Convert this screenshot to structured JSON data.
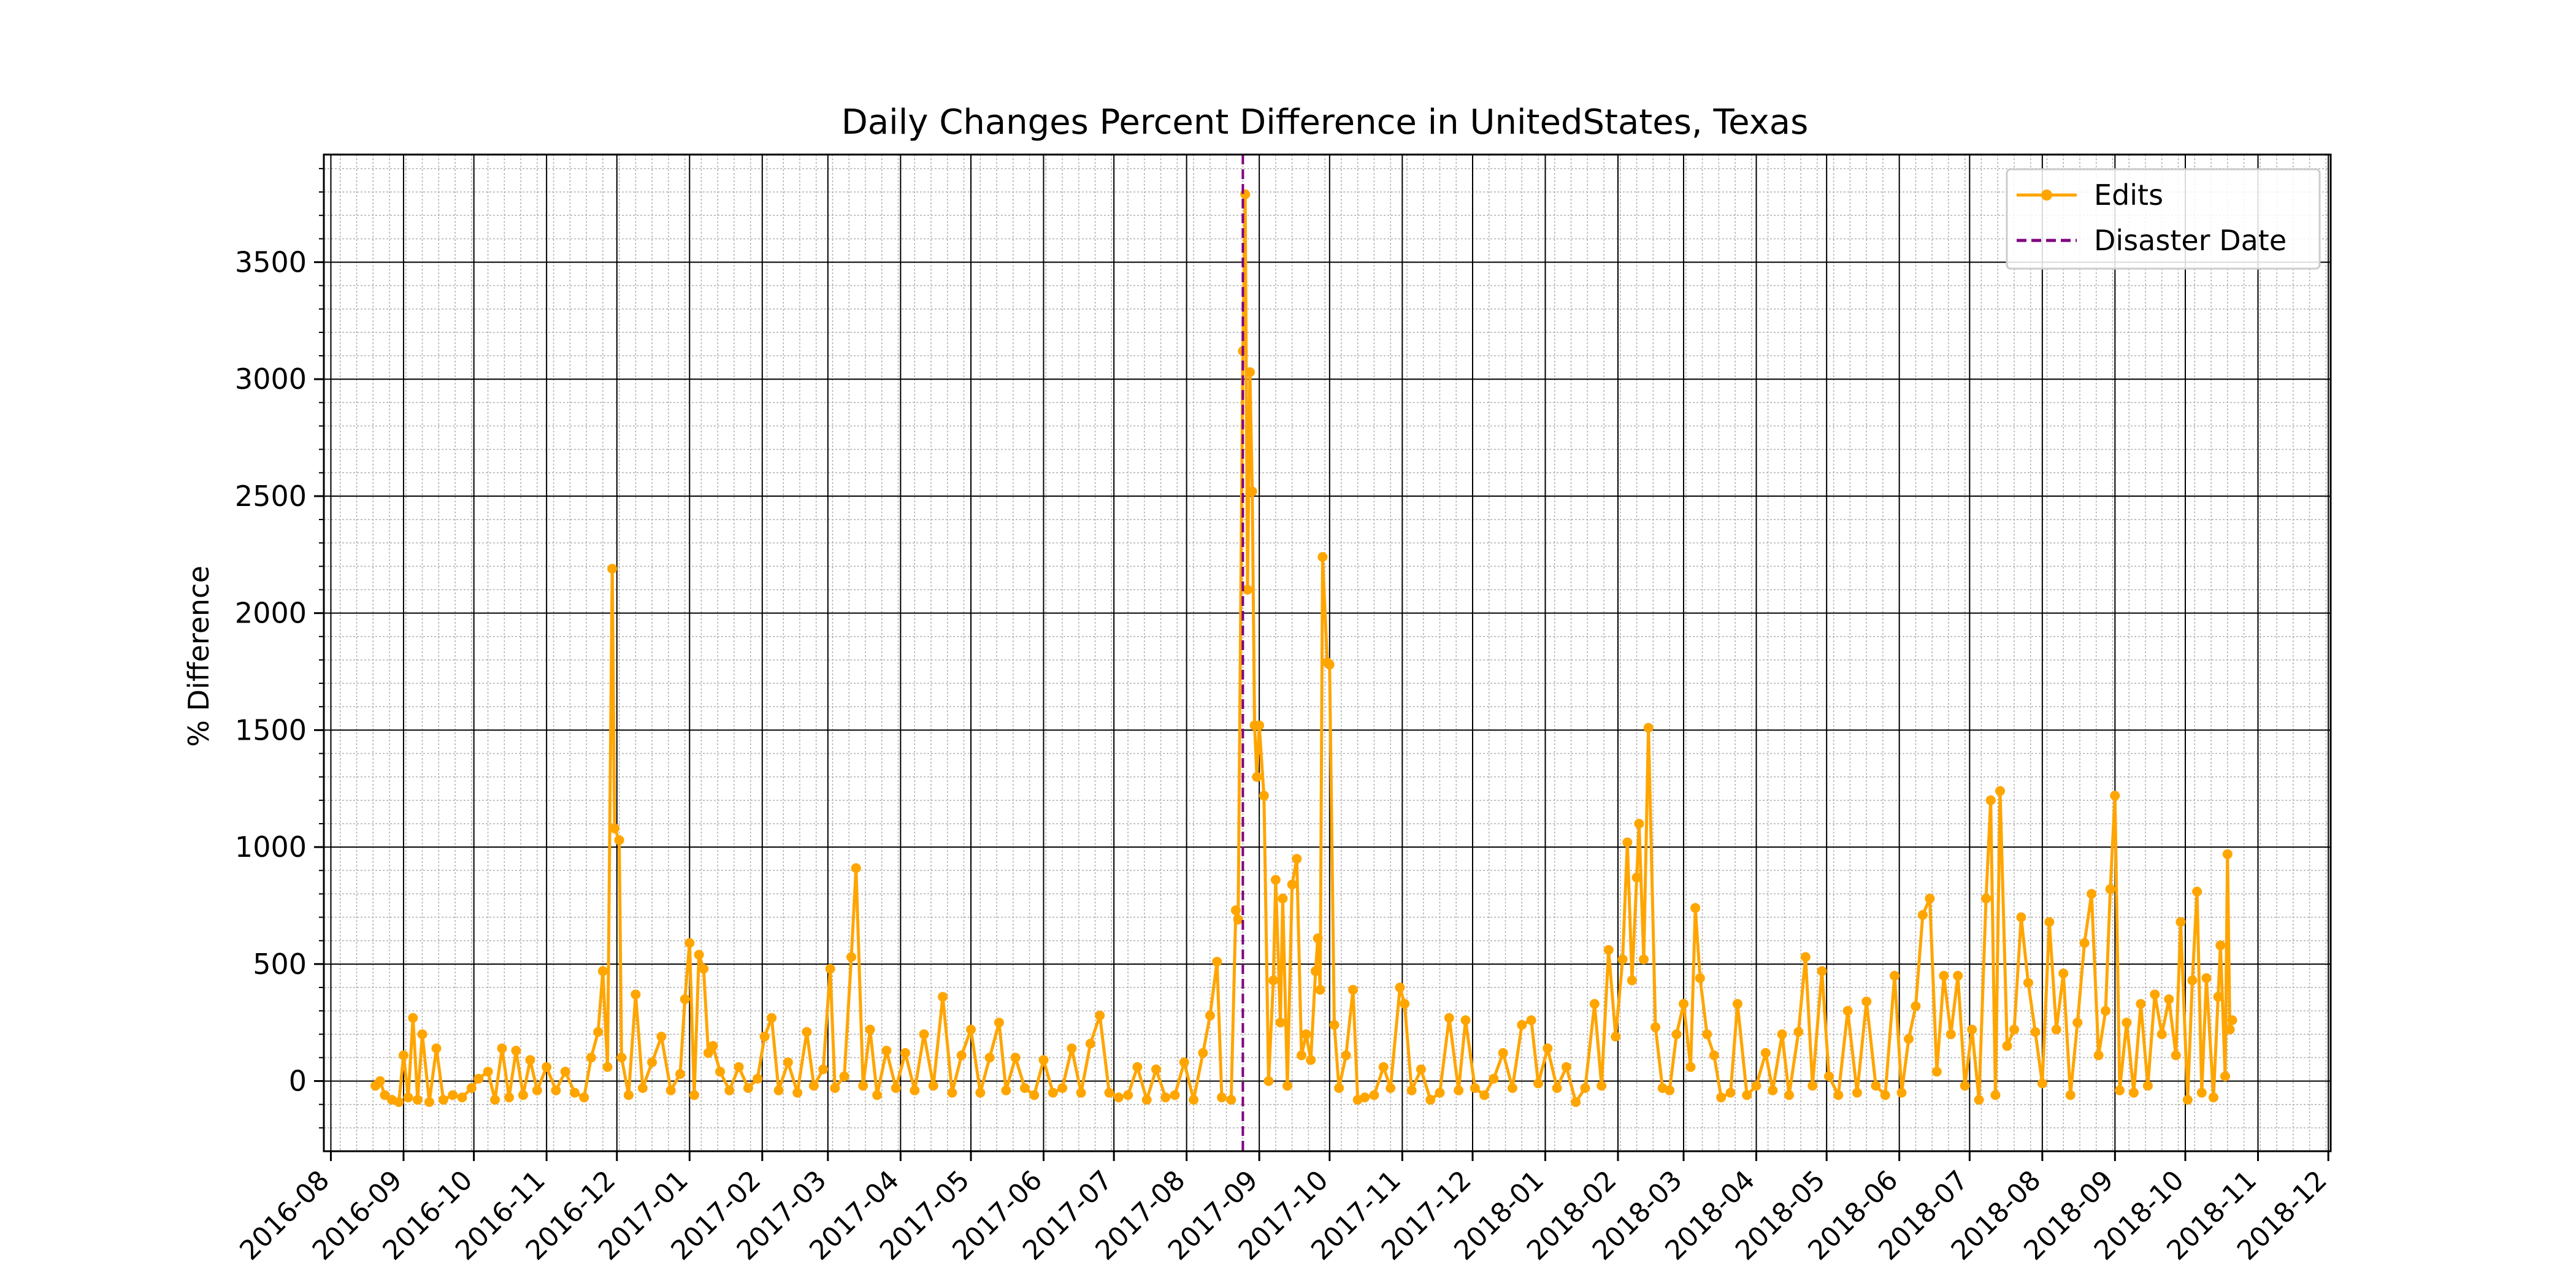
{
  "chart_data": {
    "type": "line",
    "title": "Daily Changes Percent Difference in UnitedStates, Texas",
    "xlabel": "",
    "ylabel": "% Difference",
    "xlim": [
      "2016-07-29",
      "2018-12-02"
    ],
    "ylim": [
      -300,
      3960
    ],
    "y_ticks": [
      0,
      500,
      1000,
      1500,
      2000,
      2500,
      3000,
      3500
    ],
    "x_ticks": [
      "2016-08",
      "2016-09",
      "2016-10",
      "2016-11",
      "2016-12",
      "2017-01",
      "2017-02",
      "2017-03",
      "2017-04",
      "2017-05",
      "2017-06",
      "2017-07",
      "2017-08",
      "2017-09",
      "2017-10",
      "2017-11",
      "2017-12",
      "2018-01",
      "2018-02",
      "2018-03",
      "2018-04",
      "2018-05",
      "2018-06",
      "2018-07",
      "2018-08",
      "2018-09",
      "2018-10",
      "2018-11",
      "2018-12"
    ],
    "grid": {
      "major": true,
      "minor": true
    },
    "legend": {
      "placement": "top-right",
      "entries": [
        "Edits",
        "Disaster Date"
      ]
    },
    "disaster_date": "2017-08-25",
    "colors": {
      "edits": "#FFA500",
      "disaster": "#800080"
    },
    "series": [
      {
        "name": "Edits",
        "points": [
          [
            "2016-08-20",
            -20
          ],
          [
            "2016-08-22",
            0
          ],
          [
            "2016-08-24",
            -60
          ],
          [
            "2016-08-27",
            -80
          ],
          [
            "2016-08-30",
            -90
          ],
          [
            "2016-09-01",
            110
          ],
          [
            "2016-09-03",
            -70
          ],
          [
            "2016-09-05",
            270
          ],
          [
            "2016-09-07",
            -80
          ],
          [
            "2016-09-09",
            200
          ],
          [
            "2016-09-12",
            -90
          ],
          [
            "2016-09-15",
            140
          ],
          [
            "2016-09-18",
            -80
          ],
          [
            "2016-09-22",
            -60
          ],
          [
            "2016-09-26",
            -70
          ],
          [
            "2016-09-30",
            -30
          ],
          [
            "2016-10-03",
            10
          ],
          [
            "2016-10-07",
            40
          ],
          [
            "2016-10-10",
            -80
          ],
          [
            "2016-10-13",
            140
          ],
          [
            "2016-10-16",
            -70
          ],
          [
            "2016-10-19",
            130
          ],
          [
            "2016-10-22",
            -60
          ],
          [
            "2016-10-25",
            90
          ],
          [
            "2016-10-28",
            -40
          ],
          [
            "2016-11-01",
            60
          ],
          [
            "2016-11-05",
            -40
          ],
          [
            "2016-11-09",
            40
          ],
          [
            "2016-11-13",
            -50
          ],
          [
            "2016-11-17",
            -70
          ],
          [
            "2016-11-20",
            100
          ],
          [
            "2016-11-23",
            210
          ],
          [
            "2016-11-25",
            470
          ],
          [
            "2016-11-27",
            60
          ],
          [
            "2016-11-29",
            2190
          ],
          [
            "2016-11-30",
            1080
          ],
          [
            "2016-12-02",
            1030
          ],
          [
            "2016-12-03",
            100
          ],
          [
            "2016-12-06",
            -60
          ],
          [
            "2016-12-09",
            370
          ],
          [
            "2016-12-12",
            -30
          ],
          [
            "2016-12-16",
            80
          ],
          [
            "2016-12-20",
            190
          ],
          [
            "2016-12-24",
            -40
          ],
          [
            "2016-12-28",
            30
          ],
          [
            "2016-12-30",
            350
          ],
          [
            "2017-01-01",
            590
          ],
          [
            "2017-01-03",
            -60
          ],
          [
            "2017-01-05",
            540
          ],
          [
            "2017-01-07",
            480
          ],
          [
            "2017-01-09",
            120
          ],
          [
            "2017-01-11",
            150
          ],
          [
            "2017-01-14",
            40
          ],
          [
            "2017-01-18",
            -40
          ],
          [
            "2017-01-22",
            60
          ],
          [
            "2017-01-26",
            -30
          ],
          [
            "2017-01-30",
            10
          ],
          [
            "2017-02-02",
            190
          ],
          [
            "2017-02-05",
            270
          ],
          [
            "2017-02-08",
            -40
          ],
          [
            "2017-02-12",
            80
          ],
          [
            "2017-02-16",
            -50
          ],
          [
            "2017-02-20",
            210
          ],
          [
            "2017-02-23",
            -20
          ],
          [
            "2017-02-27",
            50
          ],
          [
            "2017-03-02",
            480
          ],
          [
            "2017-03-04",
            -30
          ],
          [
            "2017-03-08",
            20
          ],
          [
            "2017-03-11",
            530
          ],
          [
            "2017-03-13",
            910
          ],
          [
            "2017-03-16",
            -20
          ],
          [
            "2017-03-19",
            220
          ],
          [
            "2017-03-22",
            -60
          ],
          [
            "2017-03-26",
            130
          ],
          [
            "2017-03-30",
            -30
          ],
          [
            "2017-04-03",
            120
          ],
          [
            "2017-04-07",
            -40
          ],
          [
            "2017-04-11",
            200
          ],
          [
            "2017-04-15",
            -20
          ],
          [
            "2017-04-19",
            360
          ],
          [
            "2017-04-23",
            -50
          ],
          [
            "2017-04-27",
            110
          ],
          [
            "2017-05-01",
            220
          ],
          [
            "2017-05-05",
            -50
          ],
          [
            "2017-05-09",
            100
          ],
          [
            "2017-05-13",
            250
          ],
          [
            "2017-05-16",
            -40
          ],
          [
            "2017-05-20",
            100
          ],
          [
            "2017-05-24",
            -30
          ],
          [
            "2017-05-28",
            -60
          ],
          [
            "2017-06-01",
            90
          ],
          [
            "2017-06-05",
            -50
          ],
          [
            "2017-06-09",
            -30
          ],
          [
            "2017-06-13",
            140
          ],
          [
            "2017-06-17",
            -50
          ],
          [
            "2017-06-21",
            160
          ],
          [
            "2017-06-25",
            280
          ],
          [
            "2017-06-29",
            -50
          ],
          [
            "2017-07-03",
            -70
          ],
          [
            "2017-07-07",
            -60
          ],
          [
            "2017-07-11",
            60
          ],
          [
            "2017-07-15",
            -80
          ],
          [
            "2017-07-19",
            50
          ],
          [
            "2017-07-23",
            -70
          ],
          [
            "2017-07-27",
            -60
          ],
          [
            "2017-07-31",
            80
          ],
          [
            "2017-08-04",
            -80
          ],
          [
            "2017-08-08",
            120
          ],
          [
            "2017-08-11",
            280
          ],
          [
            "2017-08-14",
            510
          ],
          [
            "2017-08-16",
            -70
          ],
          [
            "2017-08-20",
            -80
          ],
          [
            "2017-08-22",
            730
          ],
          [
            "2017-08-23",
            690
          ],
          [
            "2017-08-25",
            3120
          ],
          [
            "2017-08-26",
            3790
          ],
          [
            "2017-08-27",
            2100
          ],
          [
            "2017-08-28",
            3030
          ],
          [
            "2017-08-29",
            2520
          ],
          [
            "2017-08-30",
            1520
          ],
          [
            "2017-08-31",
            1300
          ],
          [
            "2017-09-01",
            1520
          ],
          [
            "2017-09-03",
            1220
          ],
          [
            "2017-09-05",
            0
          ],
          [
            "2017-09-07",
            430
          ],
          [
            "2017-09-08",
            860
          ],
          [
            "2017-09-10",
            250
          ],
          [
            "2017-09-11",
            780
          ],
          [
            "2017-09-13",
            -20
          ],
          [
            "2017-09-15",
            840
          ],
          [
            "2017-09-17",
            950
          ],
          [
            "2017-09-19",
            110
          ],
          [
            "2017-09-21",
            200
          ],
          [
            "2017-09-23",
            90
          ],
          [
            "2017-09-25",
            470
          ],
          [
            "2017-09-26",
            610
          ],
          [
            "2017-09-27",
            390
          ],
          [
            "2017-09-28",
            2240
          ],
          [
            "2017-09-30",
            1790
          ],
          [
            "2017-10-01",
            1780
          ],
          [
            "2017-10-03",
            240
          ],
          [
            "2017-10-05",
            -30
          ],
          [
            "2017-10-08",
            110
          ],
          [
            "2017-10-11",
            390
          ],
          [
            "2017-10-13",
            -80
          ],
          [
            "2017-10-16",
            -70
          ],
          [
            "2017-10-20",
            -60
          ],
          [
            "2017-10-24",
            60
          ],
          [
            "2017-10-27",
            -30
          ],
          [
            "2017-10-31",
            400
          ],
          [
            "2017-11-02",
            330
          ],
          [
            "2017-11-05",
            -40
          ],
          [
            "2017-11-09",
            50
          ],
          [
            "2017-11-13",
            -80
          ],
          [
            "2017-11-17",
            -50
          ],
          [
            "2017-11-21",
            270
          ],
          [
            "2017-11-25",
            -40
          ],
          [
            "2017-11-28",
            260
          ],
          [
            "2017-12-02",
            -30
          ],
          [
            "2017-12-06",
            -60
          ],
          [
            "2017-12-10",
            10
          ],
          [
            "2017-12-14",
            120
          ],
          [
            "2017-12-18",
            -30
          ],
          [
            "2017-12-22",
            240
          ],
          [
            "2017-12-26",
            260
          ],
          [
            "2017-12-29",
            -10
          ],
          [
            "2018-01-02",
            140
          ],
          [
            "2018-01-06",
            -30
          ],
          [
            "2018-01-10",
            60
          ],
          [
            "2018-01-14",
            -90
          ],
          [
            "2018-01-18",
            -30
          ],
          [
            "2018-01-22",
            330
          ],
          [
            "2018-01-25",
            -20
          ],
          [
            "2018-01-28",
            560
          ],
          [
            "2018-01-31",
            190
          ],
          [
            "2018-02-03",
            520
          ],
          [
            "2018-02-05",
            1020
          ],
          [
            "2018-02-07",
            430
          ],
          [
            "2018-02-09",
            870
          ],
          [
            "2018-02-10",
            1100
          ],
          [
            "2018-02-12",
            520
          ],
          [
            "2018-02-14",
            1510
          ],
          [
            "2018-02-17",
            230
          ],
          [
            "2018-02-20",
            -30
          ],
          [
            "2018-02-23",
            -40
          ],
          [
            "2018-02-26",
            200
          ],
          [
            "2018-03-01",
            330
          ],
          [
            "2018-03-04",
            60
          ],
          [
            "2018-03-06",
            740
          ],
          [
            "2018-03-08",
            440
          ],
          [
            "2018-03-11",
            200
          ],
          [
            "2018-03-14",
            110
          ],
          [
            "2018-03-17",
            -70
          ],
          [
            "2018-03-21",
            -50
          ],
          [
            "2018-03-24",
            330
          ],
          [
            "2018-03-28",
            -60
          ],
          [
            "2018-04-01",
            -20
          ],
          [
            "2018-04-05",
            120
          ],
          [
            "2018-04-08",
            -40
          ],
          [
            "2018-04-12",
            200
          ],
          [
            "2018-04-15",
            -60
          ],
          [
            "2018-04-19",
            210
          ],
          [
            "2018-04-22",
            530
          ],
          [
            "2018-04-25",
            -20
          ],
          [
            "2018-04-29",
            470
          ],
          [
            "2018-05-02",
            20
          ],
          [
            "2018-05-06",
            -60
          ],
          [
            "2018-05-10",
            300
          ],
          [
            "2018-05-14",
            -50
          ],
          [
            "2018-05-18",
            340
          ],
          [
            "2018-05-22",
            -20
          ],
          [
            "2018-05-26",
            -60
          ],
          [
            "2018-05-30",
            450
          ],
          [
            "2018-06-02",
            -50
          ],
          [
            "2018-06-05",
            180
          ],
          [
            "2018-06-08",
            320
          ],
          [
            "2018-06-11",
            710
          ],
          [
            "2018-06-14",
            780
          ],
          [
            "2018-06-17",
            40
          ],
          [
            "2018-06-20",
            450
          ],
          [
            "2018-06-23",
            200
          ],
          [
            "2018-06-26",
            450
          ],
          [
            "2018-06-29",
            -20
          ],
          [
            "2018-07-02",
            220
          ],
          [
            "2018-07-05",
            -80
          ],
          [
            "2018-07-08",
            780
          ],
          [
            "2018-07-10",
            1200
          ],
          [
            "2018-07-12",
            -60
          ],
          [
            "2018-07-14",
            1240
          ],
          [
            "2018-07-17",
            150
          ],
          [
            "2018-07-20",
            220
          ],
          [
            "2018-07-23",
            700
          ],
          [
            "2018-07-26",
            420
          ],
          [
            "2018-07-29",
            210
          ],
          [
            "2018-08-01",
            -10
          ],
          [
            "2018-08-04",
            680
          ],
          [
            "2018-08-07",
            220
          ],
          [
            "2018-08-10",
            460
          ],
          [
            "2018-08-13",
            -60
          ],
          [
            "2018-08-16",
            250
          ],
          [
            "2018-08-19",
            590
          ],
          [
            "2018-08-22",
            800
          ],
          [
            "2018-08-25",
            110
          ],
          [
            "2018-08-28",
            300
          ],
          [
            "2018-08-30",
            820
          ],
          [
            "2018-09-01",
            1220
          ],
          [
            "2018-09-03",
            -40
          ],
          [
            "2018-09-06",
            250
          ],
          [
            "2018-09-09",
            -50
          ],
          [
            "2018-09-12",
            330
          ],
          [
            "2018-09-15",
            -20
          ],
          [
            "2018-09-18",
            370
          ],
          [
            "2018-09-21",
            200
          ],
          [
            "2018-09-24",
            350
          ],
          [
            "2018-09-27",
            110
          ],
          [
            "2018-09-29",
            680
          ],
          [
            "2018-10-02",
            -80
          ],
          [
            "2018-10-04",
            430
          ],
          [
            "2018-10-06",
            810
          ],
          [
            "2018-10-08",
            -50
          ],
          [
            "2018-10-10",
            440
          ],
          [
            "2018-10-13",
            -70
          ],
          [
            "2018-10-15",
            360
          ],
          [
            "2018-10-16",
            580
          ],
          [
            "2018-10-18",
            20
          ],
          [
            "2018-10-19",
            970
          ],
          [
            "2018-10-20",
            220
          ],
          [
            "2018-10-21",
            260
          ]
        ]
      }
    ]
  }
}
